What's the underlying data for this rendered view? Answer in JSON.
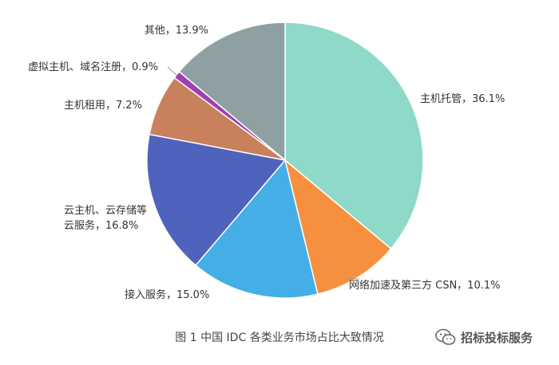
{
  "chart_data": {
    "type": "pie",
    "title": "",
    "caption": "图 1    中国 IDC 各类业务市场占比大致情况",
    "start_angle_deg": 0,
    "direction": "clockwise",
    "slices": [
      {
        "name": "主机托管",
        "value": 36.1,
        "label": "主机托管，36.1%",
        "color": "#8fd9c8"
      },
      {
        "name": "网络加速及第三方 CSN",
        "value": 10.1,
        "label": "网络加速及第三方 CSN，10.1%",
        "color": "#f6903f"
      },
      {
        "name": "接入服务",
        "value": 15.0,
        "label": "接入服务，15.0%",
        "color": "#45aee6"
      },
      {
        "name": "云主机、云存储等云服务",
        "value": 16.8,
        "label_lines": [
          "云主机、云存储等",
          "云服务，16.8%"
        ],
        "color": "#4f63bc"
      },
      {
        "name": "主机租用",
        "value": 7.2,
        "label": "主机租用，7.2%",
        "color": "#c8815c"
      },
      {
        "name": "虚拟主机、域名注册",
        "value": 0.9,
        "label": "虚拟主机、域名注册，0.9%",
        "color": "#a33fae"
      },
      {
        "name": "其他",
        "value": 13.9,
        "label": "其他，13.9%",
        "color": "#8fa0a2"
      }
    ]
  },
  "watermark": {
    "text": "招标投标服务",
    "icon": "wechat-icon"
  }
}
